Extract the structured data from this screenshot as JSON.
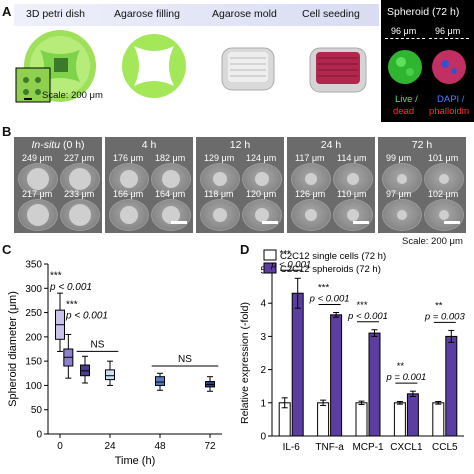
{
  "panel_labels": {
    "a": "A",
    "b": "B",
    "c": "C",
    "d": "D"
  },
  "panelA": {
    "steps": [
      "3D petri dish",
      "Agarose filling",
      "Agarose mold",
      "Cell seeding"
    ],
    "scale": "Scale: 200 μm",
    "spheroid_title": "Spheroid (72 h)",
    "live_size": "96 μm",
    "dapi_size": "96 μm",
    "live_label": "Live /",
    "dead_label": "dead",
    "dapi_label": "DAPI /",
    "phalloidin_label": "phalloidin",
    "colors": {
      "green": "#7fd34a",
      "lime": "#a4e85a",
      "red": "#d23a6f",
      "blue": "#2a4fd0"
    }
  },
  "panelB": {
    "columns": [
      {
        "header_italic": "In-situ",
        "header_rest": " (0 h)",
        "sizes": [
          "249 μm",
          "227 μm",
          "217 μm",
          "233 μm"
        ]
      },
      {
        "header_italic": "",
        "header_rest": "4 h",
        "sizes": [
          "176 μm",
          "182 μm",
          "166 μm",
          "164 μm"
        ]
      },
      {
        "header_italic": "",
        "header_rest": "12 h",
        "sizes": [
          "129 μm",
          "124 μm",
          "118 μm",
          "120 μm"
        ]
      },
      {
        "header_italic": "",
        "header_rest": "24 h",
        "sizes": [
          "117 μm",
          "114 μm",
          "126 μm",
          "110 μm"
        ]
      },
      {
        "header_italic": "",
        "header_rest": "72 h",
        "sizes": [
          "99 μm",
          "101 μm",
          "97 μm",
          "102 μm"
        ]
      }
    ],
    "scale": "Scale: 200 μm"
  },
  "chart_data": [
    {
      "type": "box",
      "ylabel": "Spheroid diameter (μm)",
      "xlabel": "Time (h)",
      "x_ticks": [
        "0",
        "24",
        "48",
        "72"
      ],
      "ylim": [
        0,
        350
      ],
      "y_ticks": [
        0,
        50,
        100,
        150,
        200,
        250,
        300,
        350
      ],
      "boxes": [
        {
          "time": 0,
          "min": 170,
          "q1": 195,
          "median": 225,
          "q3": 255,
          "max": 290,
          "color": "#c9c3ea"
        },
        {
          "time": 4,
          "min": 115,
          "q1": 140,
          "median": 158,
          "q3": 175,
          "max": 205,
          "color": "#8c80cf"
        },
        {
          "time": 12,
          "min": 105,
          "q1": 120,
          "median": 130,
          "q3": 142,
          "max": 160,
          "color": "#4a3b8c"
        },
        {
          "time": 24,
          "min": 100,
          "q1": 112,
          "median": 120,
          "q3": 132,
          "max": 150,
          "color": "#c8e0f5"
        },
        {
          "time": 48,
          "min": 90,
          "q1": 100,
          "median": 107,
          "q3": 118,
          "max": 125,
          "color": "#5a78c8"
        },
        {
          "time": 72,
          "min": 88,
          "q1": 97,
          "median": 102,
          "q3": 108,
          "max": 118,
          "color": "#2b3e8f"
        }
      ],
      "annotations": [
        {
          "stars": "***",
          "p": "p < 0.001"
        },
        {
          "stars": "***",
          "p": "p < 0.001"
        },
        {
          "ns": "NS"
        },
        {
          "ns": "NS"
        }
      ]
    },
    {
      "type": "bar",
      "ylabel": "Relative expression (-fold)",
      "categories": [
        "IL-6",
        "TNF-a",
        "MCP-1",
        "CXCL1",
        "CCL5"
      ],
      "ylim": [
        0,
        5
      ],
      "y_ticks": [
        0,
        1,
        2,
        3,
        4,
        5
      ],
      "series": [
        {
          "name": "C2C12 single cells (72 h)",
          "values": [
            1.0,
            1.0,
            1.0,
            1.0,
            1.0
          ],
          "errors": [
            0.15,
            0.08,
            0.05,
            0.04,
            0.04
          ],
          "color": "#ffffff"
        },
        {
          "name": "C2C12 spheroids (72 h)",
          "values": [
            4.3,
            3.65,
            3.1,
            1.27,
            3.0
          ],
          "errors": [
            0.45,
            0.07,
            0.1,
            0.08,
            0.18
          ],
          "color": "#5b3fa0"
        }
      ],
      "annotations": [
        {
          "stars": "***",
          "p": "p < 0.001"
        },
        {
          "stars": "***",
          "p": "p < 0.001"
        },
        {
          "stars": "***",
          "p": "p < 0.001"
        },
        {
          "stars": "**",
          "p": "p = 0.001"
        },
        {
          "stars": "**",
          "p": "p = 0.003"
        }
      ]
    }
  ]
}
